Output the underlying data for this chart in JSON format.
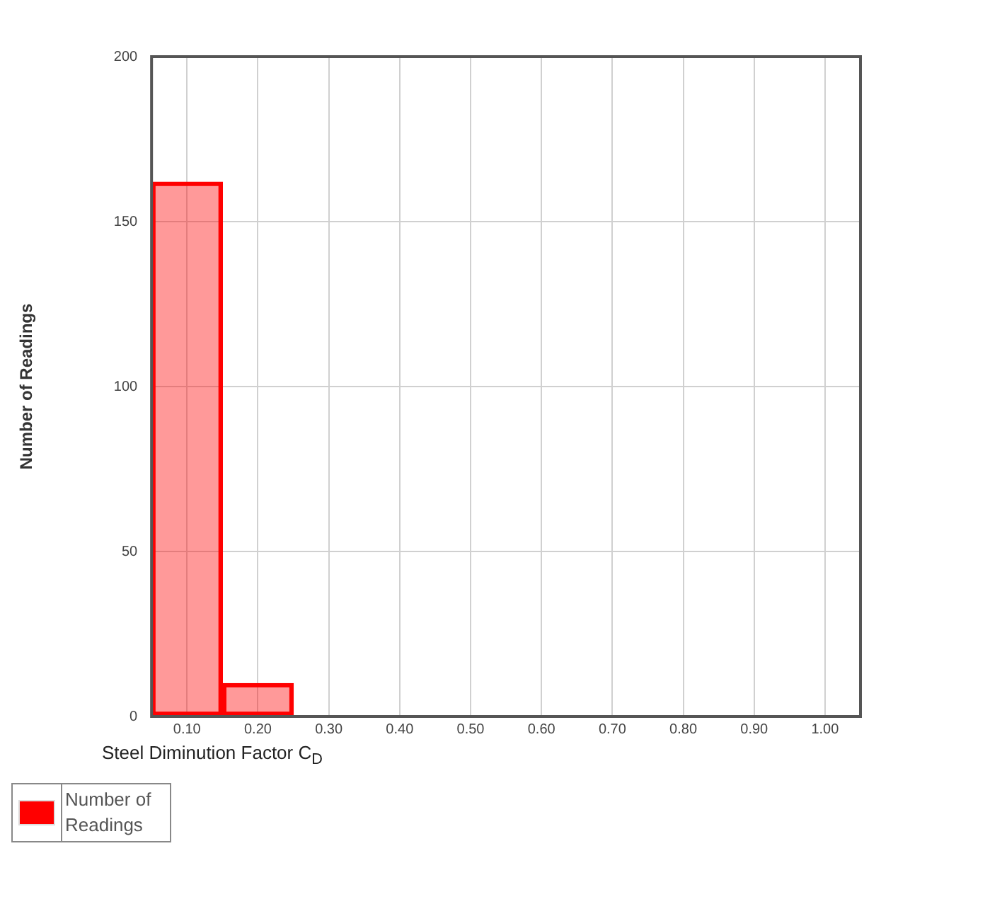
{
  "chart_data": {
    "type": "bar",
    "xlabel": "Steel Diminution Factor C$_{D}$",
    "ylabel": "Number of Readings",
    "categories": [
      "0.10",
      "0.20",
      "0.30",
      "0.40",
      "0.50",
      "0.60",
      "0.70",
      "0.80",
      "0.90",
      "1.00"
    ],
    "series": [
      {
        "name": "Number of Readings",
        "color": "#ff0000",
        "values": [
          162,
          10,
          0,
          0,
          0,
          0,
          0,
          0,
          0,
          0
        ]
      }
    ],
    "ylim": [
      0,
      200
    ],
    "yticks": [
      0,
      50,
      100,
      150,
      200
    ],
    "grid": true,
    "legend": "bottom left"
  }
}
